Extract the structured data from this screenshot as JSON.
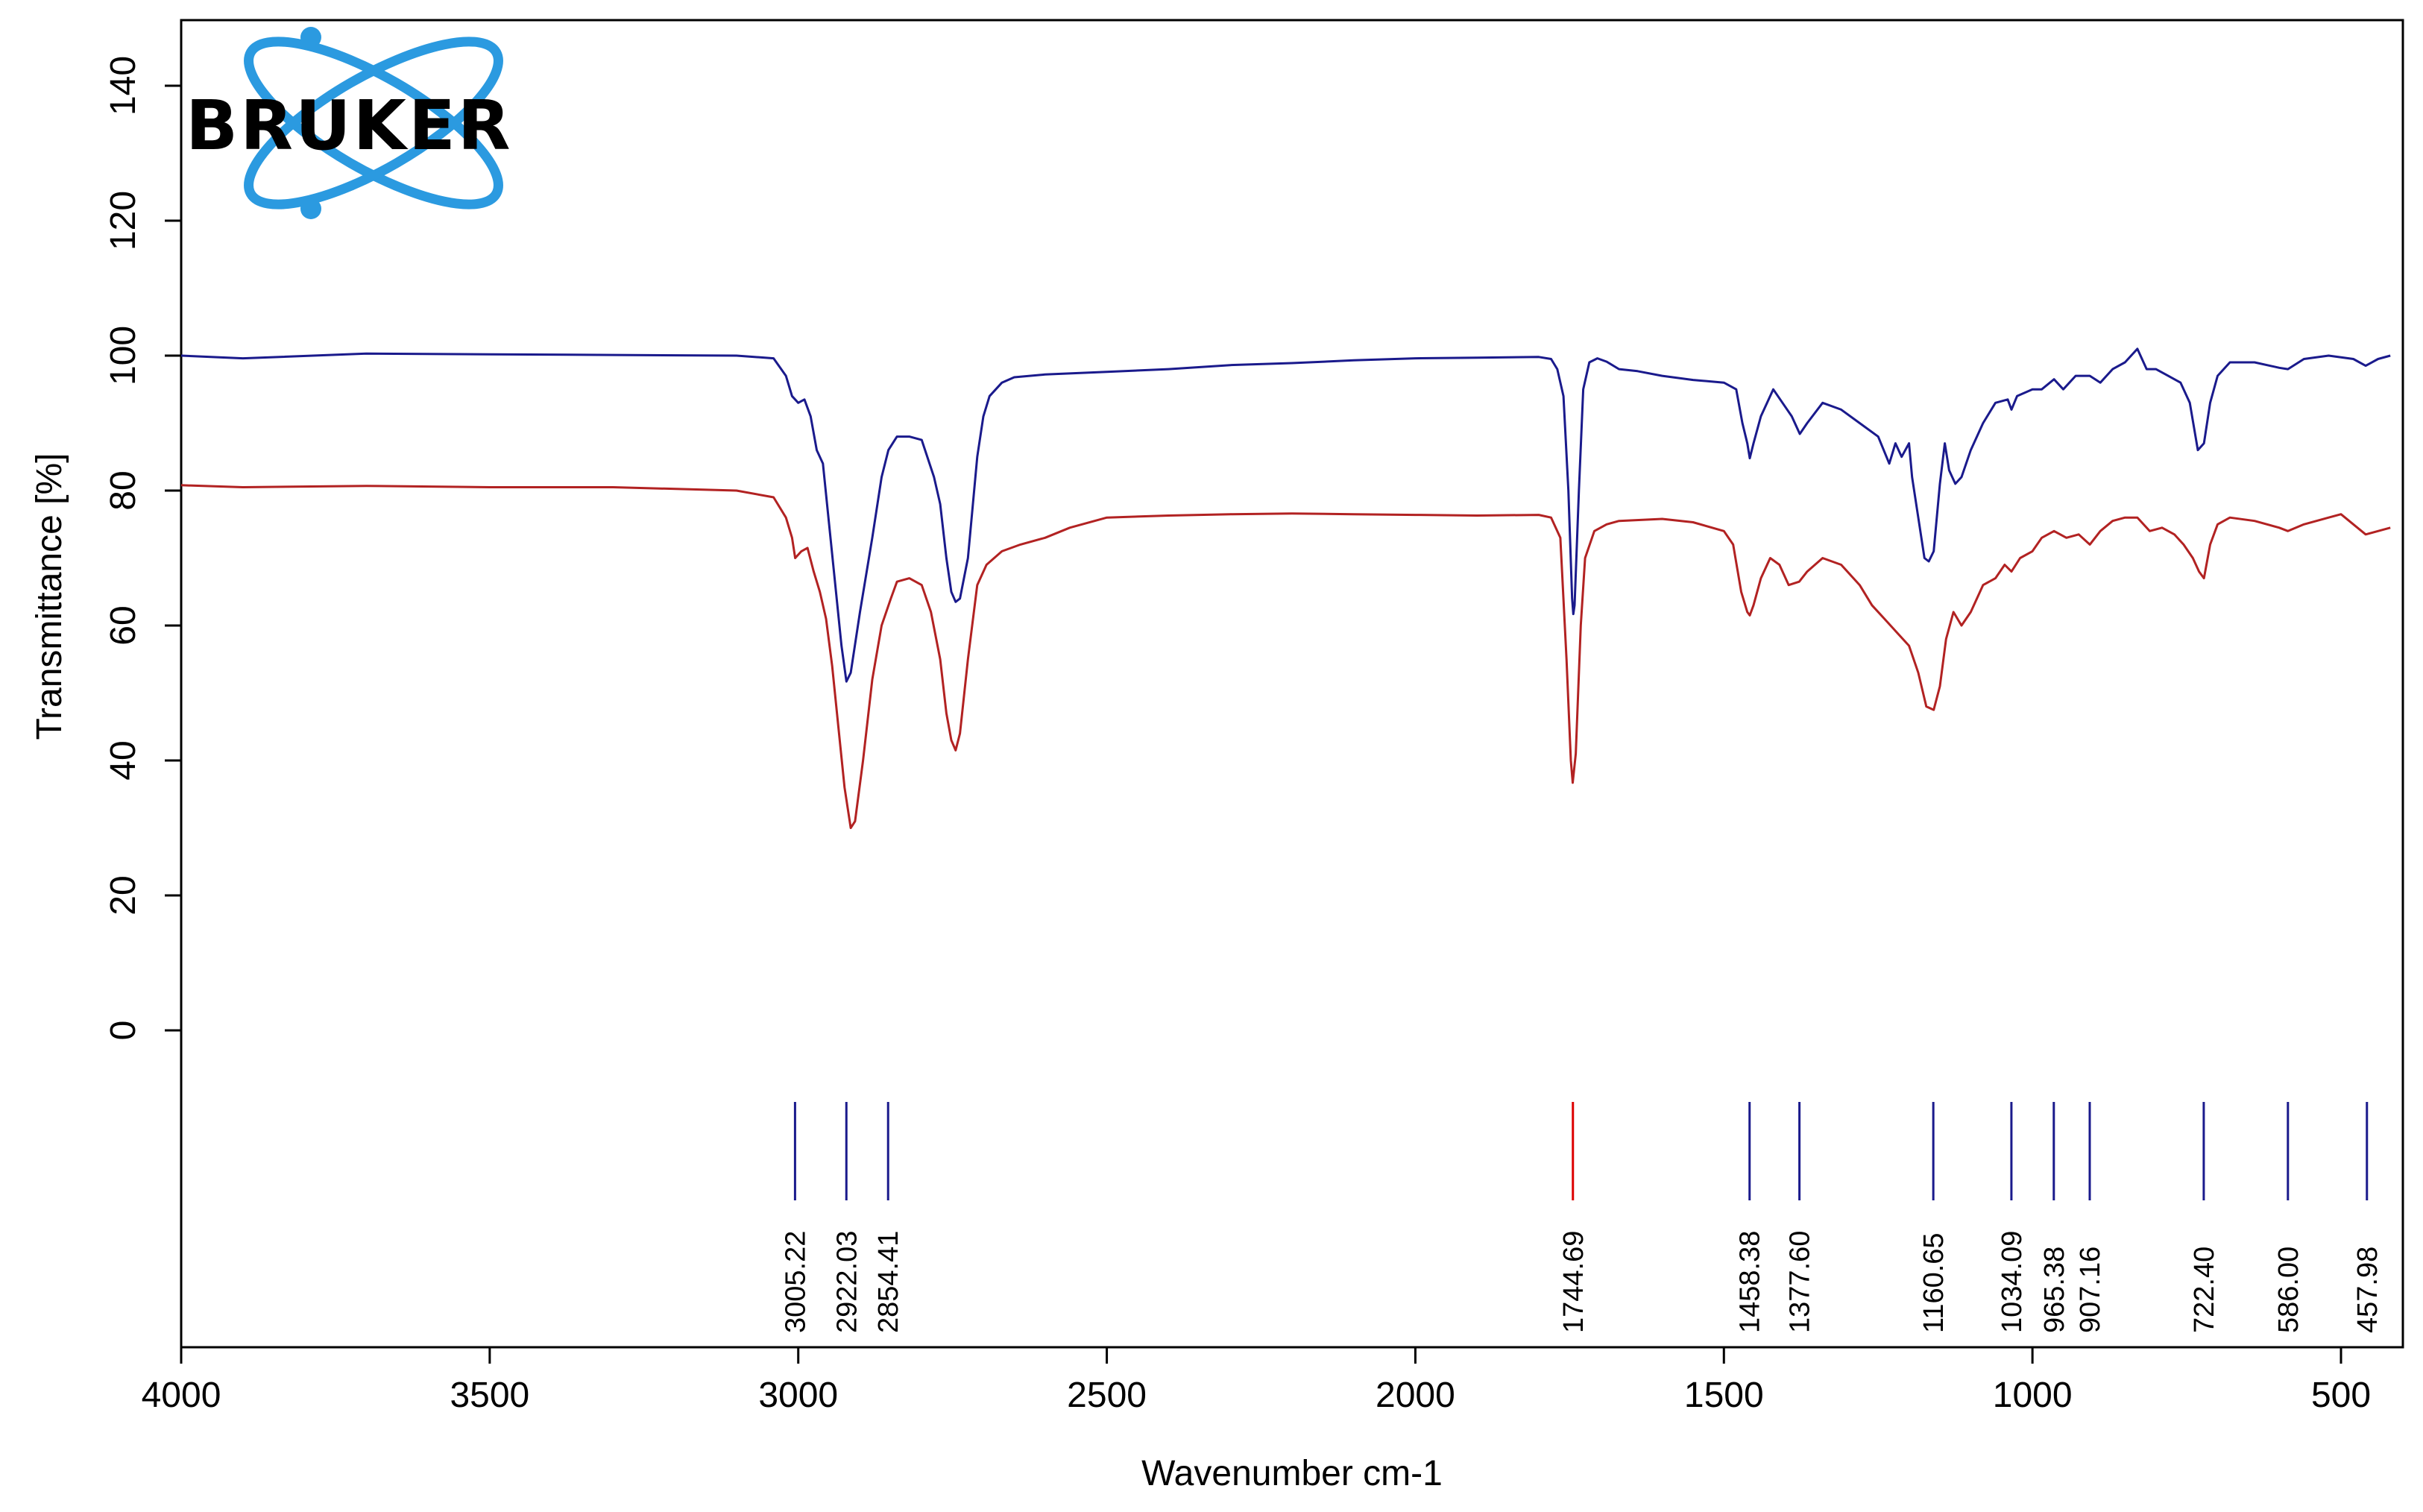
{
  "logo": {
    "name": "bruker-atom-logo",
    "text": "BRUKER",
    "color": "#2b9ae0"
  },
  "colors": {
    "series_top": "#1a1a8c",
    "series_bottom": "#b22222",
    "peak_default": "#1a1a8c",
    "peak_highlight": "#dd0000"
  },
  "chart_data": {
    "type": "line",
    "xlabel": "Wavenumber cm-1",
    "ylabel": "Transmittance [%]",
    "xlim": [
      4000,
      420
    ],
    "ylim": [
      0,
      150
    ],
    "x_reversed": true,
    "x_ticks": [
      4000,
      3500,
      3000,
      2500,
      2000,
      1500,
      1000,
      500
    ],
    "y_ticks": [
      0,
      20,
      40,
      60,
      80,
      100,
      120,
      140
    ],
    "grid": false,
    "series": [
      {
        "color": "#1a1a8c",
        "points": [
          [
            4000,
            100
          ],
          [
            3900,
            99.6
          ],
          [
            3700,
            100.3
          ],
          [
            3500,
            100.2
          ],
          [
            3300,
            100.1
          ],
          [
            3100,
            100
          ],
          [
            3040,
            99.6
          ],
          [
            3020,
            97
          ],
          [
            3010,
            94
          ],
          [
            3000,
            93
          ],
          [
            2990,
            93.5
          ],
          [
            2980,
            91
          ],
          [
            2970,
            86
          ],
          [
            2960,
            84
          ],
          [
            2950,
            75
          ],
          [
            2940,
            66
          ],
          [
            2930,
            57
          ],
          [
            2922,
            51.7
          ],
          [
            2915,
            53
          ],
          [
            2900,
            62
          ],
          [
            2880,
            73
          ],
          [
            2865,
            82
          ],
          [
            2854,
            86
          ],
          [
            2840,
            88
          ],
          [
            2820,
            88
          ],
          [
            2800,
            87.5
          ],
          [
            2780,
            82
          ],
          [
            2770,
            78
          ],
          [
            2760,
            70
          ],
          [
            2752,
            65
          ],
          [
            2745,
            63.5
          ],
          [
            2738,
            64
          ],
          [
            2725,
            70
          ],
          [
            2710,
            85
          ],
          [
            2700,
            91
          ],
          [
            2690,
            94
          ],
          [
            2670,
            96
          ],
          [
            2650,
            96.8
          ],
          [
            2600,
            97.2
          ],
          [
            2500,
            97.6
          ],
          [
            2400,
            98
          ],
          [
            2300,
            98.6
          ],
          [
            2200,
            98.9
          ],
          [
            2100,
            99.3
          ],
          [
            2000,
            99.6
          ],
          [
            1900,
            99.7
          ],
          [
            1800,
            99.8
          ],
          [
            1780,
            99.5
          ],
          [
            1770,
            98
          ],
          [
            1760,
            94
          ],
          [
            1752,
            80
          ],
          [
            1746,
            64
          ],
          [
            1744,
            61.7
          ],
          [
            1742,
            63
          ],
          [
            1735,
            80
          ],
          [
            1728,
            95
          ],
          [
            1718,
            99
          ],
          [
            1705,
            99.6
          ],
          [
            1690,
            99.1
          ],
          [
            1670,
            98
          ],
          [
            1640,
            97.7
          ],
          [
            1600,
            97
          ],
          [
            1550,
            96.4
          ],
          [
            1500,
            96
          ],
          [
            1480,
            95
          ],
          [
            1470,
            90
          ],
          [
            1462,
            87
          ],
          [
            1458,
            84.8
          ],
          [
            1452,
            87
          ],
          [
            1440,
            91
          ],
          [
            1420,
            95
          ],
          [
            1405,
            93
          ],
          [
            1390,
            91
          ],
          [
            1377,
            88.4
          ],
          [
            1365,
            90
          ],
          [
            1340,
            93
          ],
          [
            1310,
            92
          ],
          [
            1280,
            90
          ],
          [
            1250,
            88
          ],
          [
            1232,
            84
          ],
          [
            1222,
            87
          ],
          [
            1212,
            85
          ],
          [
            1200,
            87
          ],
          [
            1195,
            82
          ],
          [
            1185,
            76
          ],
          [
            1175,
            70
          ],
          [
            1168,
            69.5
          ],
          [
            1160,
            71
          ],
          [
            1150,
            81
          ],
          [
            1142,
            87
          ],
          [
            1135,
            83
          ],
          [
            1125,
            81
          ],
          [
            1115,
            82
          ],
          [
            1100,
            86
          ],
          [
            1080,
            90
          ],
          [
            1060,
            93
          ],
          [
            1040,
            93.5
          ],
          [
            1034,
            92
          ],
          [
            1025,
            94
          ],
          [
            1000,
            95
          ],
          [
            985,
            95
          ],
          [
            965,
            96.5
          ],
          [
            950,
            95
          ],
          [
            930,
            97
          ],
          [
            907,
            97
          ],
          [
            890,
            96
          ],
          [
            870,
            98
          ],
          [
            850,
            99
          ],
          [
            830,
            101
          ],
          [
            815,
            98
          ],
          [
            800,
            98
          ],
          [
            780,
            97
          ],
          [
            760,
            96
          ],
          [
            745,
            93
          ],
          [
            732,
            86
          ],
          [
            722,
            87
          ],
          [
            712,
            93
          ],
          [
            700,
            97
          ],
          [
            680,
            99
          ],
          [
            640,
            99
          ],
          [
            600,
            98.2
          ],
          [
            586,
            98
          ],
          [
            560,
            99.5
          ],
          [
            520,
            100
          ],
          [
            480,
            99.5
          ],
          [
            460,
            98.5
          ],
          [
            440,
            99.5
          ],
          [
            420,
            100
          ]
        ]
      },
      {
        "color": "#b22222",
        "points": [
          [
            4000,
            80.8
          ],
          [
            3900,
            80.5
          ],
          [
            3700,
            80.7
          ],
          [
            3500,
            80.5
          ],
          [
            3300,
            80.5
          ],
          [
            3100,
            80
          ],
          [
            3040,
            79
          ],
          [
            3020,
            76
          ],
          [
            3010,
            73
          ],
          [
            3005,
            70
          ],
          [
            2995,
            71
          ],
          [
            2985,
            71.5
          ],
          [
            2975,
            68
          ],
          [
            2965,
            65
          ],
          [
            2955,
            61
          ],
          [
            2945,
            54
          ],
          [
            2935,
            45
          ],
          [
            2925,
            36
          ],
          [
            2915,
            30
          ],
          [
            2908,
            31
          ],
          [
            2895,
            40
          ],
          [
            2880,
            52
          ],
          [
            2865,
            60
          ],
          [
            2850,
            64
          ],
          [
            2840,
            66.5
          ],
          [
            2820,
            67
          ],
          [
            2800,
            66
          ],
          [
            2785,
            62
          ],
          [
            2770,
            55
          ],
          [
            2760,
            47
          ],
          [
            2752,
            43
          ],
          [
            2745,
            41.5
          ],
          [
            2738,
            44
          ],
          [
            2725,
            55
          ],
          [
            2710,
            66
          ],
          [
            2695,
            69
          ],
          [
            2670,
            71
          ],
          [
            2640,
            72
          ],
          [
            2600,
            73
          ],
          [
            2560,
            74.5
          ],
          [
            2500,
            76
          ],
          [
            2400,
            76.3
          ],
          [
            2300,
            76.5
          ],
          [
            2200,
            76.6
          ],
          [
            2100,
            76.5
          ],
          [
            2000,
            76.4
          ],
          [
            1900,
            76.3
          ],
          [
            1800,
            76.4
          ],
          [
            1780,
            76
          ],
          [
            1765,
            73
          ],
          [
            1755,
            55
          ],
          [
            1748,
            40
          ],
          [
            1745,
            36.7
          ],
          [
            1740,
            41
          ],
          [
            1732,
            60
          ],
          [
            1725,
            70
          ],
          [
            1710,
            74
          ],
          [
            1690,
            75
          ],
          [
            1670,
            75.5
          ],
          [
            1600,
            75.8
          ],
          [
            1550,
            75.3
          ],
          [
            1500,
            74
          ],
          [
            1485,
            72
          ],
          [
            1472,
            65
          ],
          [
            1462,
            62
          ],
          [
            1458,
            61.5
          ],
          [
            1452,
            63
          ],
          [
            1440,
            67
          ],
          [
            1425,
            70
          ],
          [
            1410,
            69
          ],
          [
            1395,
            66
          ],
          [
            1378,
            66.5
          ],
          [
            1365,
            68
          ],
          [
            1340,
            70
          ],
          [
            1310,
            69
          ],
          [
            1280,
            66
          ],
          [
            1260,
            63
          ],
          [
            1240,
            61
          ],
          [
            1220,
            59
          ],
          [
            1200,
            57
          ],
          [
            1185,
            53
          ],
          [
            1172,
            48
          ],
          [
            1160,
            47.5
          ],
          [
            1150,
            51
          ],
          [
            1140,
            58
          ],
          [
            1128,
            62
          ],
          [
            1115,
            60
          ],
          [
            1100,
            62
          ],
          [
            1080,
            66
          ],
          [
            1060,
            67
          ],
          [
            1045,
            69
          ],
          [
            1034,
            68
          ],
          [
            1020,
            70
          ],
          [
            1000,
            71
          ],
          [
            985,
            73
          ],
          [
            965,
            74
          ],
          [
            945,
            73
          ],
          [
            925,
            73.5
          ],
          [
            907,
            72
          ],
          [
            890,
            74
          ],
          [
            870,
            75.5
          ],
          [
            850,
            76
          ],
          [
            830,
            76
          ],
          [
            810,
            74
          ],
          [
            790,
            74.5
          ],
          [
            770,
            73.5
          ],
          [
            755,
            72
          ],
          [
            740,
            70
          ],
          [
            730,
            68
          ],
          [
            722,
            67
          ],
          [
            712,
            72
          ],
          [
            700,
            75
          ],
          [
            680,
            76
          ],
          [
            640,
            75.5
          ],
          [
            600,
            74.5
          ],
          [
            586,
            74
          ],
          [
            560,
            75
          ],
          [
            520,
            76
          ],
          [
            500,
            76.5
          ],
          [
            480,
            75
          ],
          [
            460,
            73.5
          ],
          [
            440,
            74
          ],
          [
            420,
            74.5
          ]
        ]
      }
    ],
    "peak_labels": [
      {
        "x": 3005.22,
        "label": "3005.22",
        "highlight": false
      },
      {
        "x": 2922.03,
        "label": "2922.03",
        "highlight": false
      },
      {
        "x": 2854.41,
        "label": "2854.41",
        "highlight": false
      },
      {
        "x": 1744.69,
        "label": "1744.69",
        "highlight": true
      },
      {
        "x": 1458.38,
        "label": "1458.38",
        "highlight": false
      },
      {
        "x": 1377.6,
        "label": "1377.60",
        "highlight": false
      },
      {
        "x": 1160.65,
        "label": "1160.65",
        "highlight": false
      },
      {
        "x": 1034.09,
        "label": "1034.09",
        "highlight": false
      },
      {
        "x": 965.38,
        "label": "965.38",
        "highlight": false
      },
      {
        "x": 907.16,
        "label": "907.16",
        "highlight": false
      },
      {
        "x": 722.4,
        "label": "722.40",
        "highlight": false
      },
      {
        "x": 586.0,
        "label": "586.00",
        "highlight": false
      },
      {
        "x": 457.98,
        "label": "457.98",
        "highlight": false
      }
    ]
  }
}
